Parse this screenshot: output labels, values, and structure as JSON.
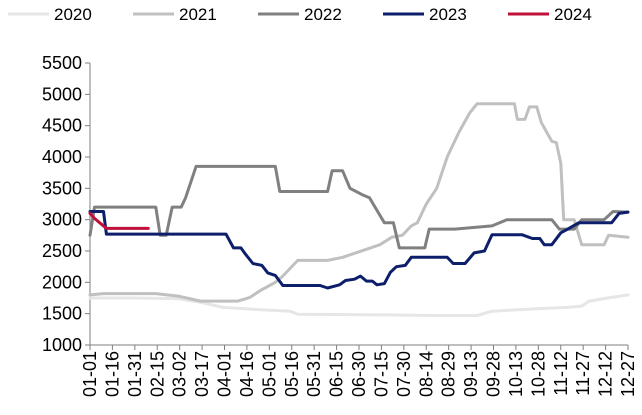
{
  "chart_data": {
    "type": "line",
    "title": "",
    "xlabel": "",
    "ylabel": "",
    "ylim": [
      1000,
      5500
    ],
    "yticks": [
      1000,
      1500,
      2000,
      2500,
      3000,
      3500,
      4000,
      4500,
      5000,
      5500
    ],
    "xlim_day": [
      1,
      361
    ],
    "x_tick_labels": [
      "01-01",
      "01-16",
      "01-31",
      "02-15",
      "03-02",
      "03-17",
      "04-01",
      "04-16",
      "05-01",
      "05-16",
      "05-31",
      "06-15",
      "06-30",
      "07-15",
      "07-30",
      "08-14",
      "08-29",
      "09-13",
      "09-28",
      "10-13",
      "10-28",
      "11-12",
      "11-27",
      "12-12",
      "12-27"
    ],
    "x_tick_days": [
      1,
      16,
      31,
      46,
      61,
      76,
      91,
      106,
      121,
      136,
      151,
      166,
      181,
      196,
      211,
      226,
      241,
      256,
      271,
      286,
      301,
      316,
      331,
      346,
      361
    ],
    "grid": false,
    "legend_position": "top",
    "series": [
      {
        "name": "2020",
        "color": "#e6e6e6",
        "width": 3,
        "points": [
          [
            1,
            1750
          ],
          [
            30,
            1750
          ],
          [
            60,
            1740
          ],
          [
            75,
            1680
          ],
          [
            90,
            1600
          ],
          [
            110,
            1570
          ],
          [
            125,
            1550
          ],
          [
            135,
            1540
          ],
          [
            140,
            1490
          ],
          [
            200,
            1480
          ],
          [
            230,
            1470
          ],
          [
            260,
            1470
          ],
          [
            270,
            1540
          ],
          [
            300,
            1580
          ],
          [
            320,
            1600
          ],
          [
            330,
            1620
          ],
          [
            335,
            1700
          ],
          [
            350,
            1760
          ],
          [
            361,
            1800
          ]
        ]
      },
      {
        "name": "2021",
        "color": "#c0c0c0",
        "width": 3,
        "points": [
          [
            1,
            1800
          ],
          [
            10,
            1820
          ],
          [
            45,
            1820
          ],
          [
            60,
            1780
          ],
          [
            75,
            1700
          ],
          [
            100,
            1700
          ],
          [
            108,
            1760
          ],
          [
            115,
            1870
          ],
          [
            125,
            2000
          ],
          [
            130,
            2100
          ],
          [
            140,
            2350
          ],
          [
            160,
            2350
          ],
          [
            170,
            2400
          ],
          [
            180,
            2480
          ],
          [
            195,
            2600
          ],
          [
            203,
            2720
          ],
          [
            210,
            2750
          ],
          [
            216,
            2900
          ],
          [
            220,
            2950
          ],
          [
            226,
            3250
          ],
          [
            233,
            3500
          ],
          [
            240,
            4000
          ],
          [
            248,
            4400
          ],
          [
            255,
            4700
          ],
          [
            260,
            4850
          ],
          [
            285,
            4850
          ],
          [
            287,
            4600
          ],
          [
            292,
            4600
          ],
          [
            295,
            4800
          ],
          [
            300,
            4800
          ],
          [
            303,
            4550
          ],
          [
            310,
            4250
          ],
          [
            313,
            4230
          ],
          [
            316,
            3900
          ],
          [
            318,
            3000
          ],
          [
            325,
            3000
          ],
          [
            330,
            2600
          ],
          [
            345,
            2600
          ],
          [
            348,
            2750
          ],
          [
            361,
            2720
          ]
        ]
      },
      {
        "name": "2022",
        "color": "#808080",
        "width": 3,
        "points": [
          [
            1,
            2750
          ],
          [
            4,
            3200
          ],
          [
            10,
            3200
          ],
          [
            45,
            3200
          ],
          [
            48,
            2750
          ],
          [
            52,
            2750
          ],
          [
            56,
            3200
          ],
          [
            62,
            3200
          ],
          [
            65,
            3350
          ],
          [
            72,
            3850
          ],
          [
            115,
            3850
          ],
          [
            125,
            3850
          ],
          [
            128,
            3450
          ],
          [
            150,
            3450
          ],
          [
            160,
            3450
          ],
          [
            163,
            3780
          ],
          [
            170,
            3780
          ],
          [
            175,
            3500
          ],
          [
            183,
            3400
          ],
          [
            188,
            3350
          ],
          [
            193,
            3150
          ],
          [
            198,
            2950
          ],
          [
            204,
            2950
          ],
          [
            208,
            2550
          ],
          [
            225,
            2550
          ],
          [
            228,
            2850
          ],
          [
            245,
            2850
          ],
          [
            270,
            2900
          ],
          [
            280,
            3000
          ],
          [
            310,
            3000
          ],
          [
            315,
            2850
          ],
          [
            325,
            2850
          ],
          [
            330,
            3000
          ],
          [
            345,
            3000
          ],
          [
            351,
            3130
          ],
          [
            361,
            3120
          ]
        ]
      },
      {
        "name": "2023",
        "color": "#0d1f6b",
        "width": 3,
        "points": [
          [
            1,
            3130
          ],
          [
            8,
            3130
          ],
          [
            10,
            3130
          ],
          [
            12,
            2770
          ],
          [
            92,
            2770
          ],
          [
            97,
            2550
          ],
          [
            102,
            2550
          ],
          [
            105,
            2450
          ],
          [
            110,
            2300
          ],
          [
            116,
            2270
          ],
          [
            120,
            2150
          ],
          [
            125,
            2110
          ],
          [
            130,
            1950
          ],
          [
            155,
            1950
          ],
          [
            160,
            1910
          ],
          [
            168,
            1960
          ],
          [
            172,
            2030
          ],
          [
            178,
            2050
          ],
          [
            182,
            2100
          ],
          [
            186,
            2020
          ],
          [
            190,
            2020
          ],
          [
            193,
            1960
          ],
          [
            198,
            1980
          ],
          [
            202,
            2160
          ],
          [
            206,
            2250
          ],
          [
            212,
            2270
          ],
          [
            216,
            2400
          ],
          [
            240,
            2400
          ],
          [
            244,
            2300
          ],
          [
            252,
            2300
          ],
          [
            258,
            2470
          ],
          [
            265,
            2500
          ],
          [
            270,
            2760
          ],
          [
            290,
            2760
          ],
          [
            297,
            2700
          ],
          [
            302,
            2700
          ],
          [
            305,
            2600
          ],
          [
            310,
            2600
          ],
          [
            316,
            2790
          ],
          [
            320,
            2840
          ],
          [
            328,
            2950
          ],
          [
            350,
            2950
          ],
          [
            355,
            3100
          ],
          [
            361,
            3120
          ]
        ]
      },
      {
        "name": "2024",
        "color": "#c0103a",
        "width": 3,
        "points": [
          [
            1,
            3100
          ],
          [
            4,
            3020
          ],
          [
            7,
            2960
          ],
          [
            12,
            2860
          ],
          [
            40,
            2860
          ]
        ]
      }
    ]
  }
}
